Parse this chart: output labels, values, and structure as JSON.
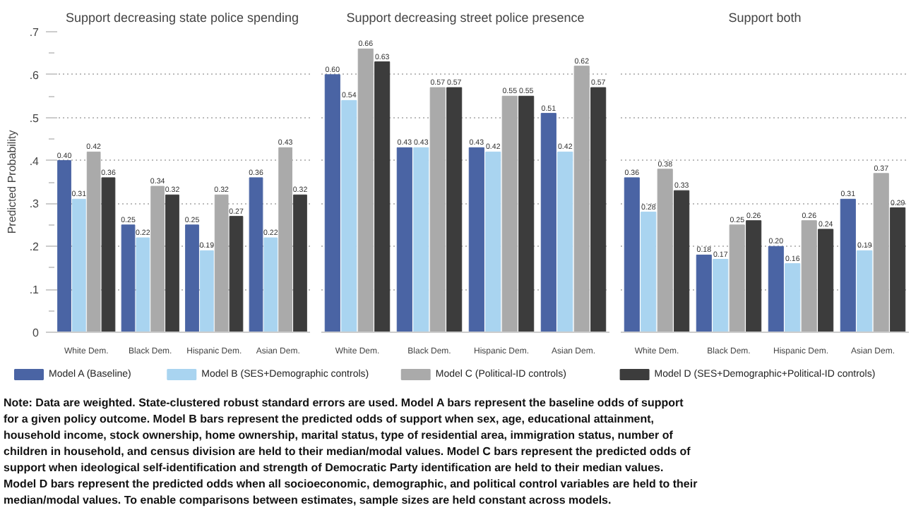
{
  "chart_data": [
    {
      "type": "bar",
      "title": "Support decreasing state police spending",
      "ylabel": "Predicted Probability",
      "categories": [
        "White Dem.",
        "Black Dem.",
        "Hispanic Dem.",
        "Asian Dem."
      ],
      "series": [
        {
          "name": "Model A (Baseline)",
          "color": "#4a64a4",
          "values": [
            0.4,
            0.25,
            0.25,
            0.36
          ],
          "value_labels": [
            "0.40",
            "0.25",
            "0.25",
            "0.36"
          ]
        },
        {
          "name": "Model B (SES+Demographic controls)",
          "color": "#a9d4f0",
          "values": [
            0.31,
            0.22,
            0.19,
            0.22
          ],
          "value_labels": [
            "0.31",
            "0.22",
            "0.19",
            "0.22"
          ]
        },
        {
          "name": "Model C (Political-ID controls)",
          "color": "#aaaaaa",
          "values": [
            0.42,
            0.34,
            0.32,
            0.43
          ],
          "value_labels": [
            "0.42",
            "0.34",
            "0.32",
            "0.43"
          ]
        },
        {
          "name": "Model D (SES+Demographic+Political-ID controls)",
          "color": "#3c3c3c",
          "values": [
            0.36,
            0.32,
            0.27,
            0.32
          ],
          "value_labels": [
            "0.36",
            "0.32",
            "0.27",
            "0.32"
          ]
        }
      ],
      "ylim": [
        0,
        0.7
      ],
      "yticks": [
        0,
        {
          "value": 0.05,
          "label": null
        },
        {
          "value": 0.1,
          "label": ".1"
        },
        {
          "value": 0.15,
          "label": null
        },
        {
          "value": 0.2,
          "label": ".2"
        },
        {
          "value": 0.25,
          "label": null
        },
        {
          "value": 0.3,
          "label": ".3"
        },
        {
          "value": 0.35,
          "label": null
        },
        {
          "value": 0.4,
          "label": ".4"
        },
        {
          "value": 0.45,
          "label": null
        },
        {
          "value": 0.5,
          "label": ".5"
        },
        {
          "value": 0.55,
          "label": null
        },
        {
          "value": 0.6,
          "label": ".6"
        },
        {
          "value": 0.65,
          "label": null
        },
        {
          "value": 0.7,
          "label": ".7"
        }
      ],
      "grid": "y",
      "legend": "bottom",
      "annotations": [
        "Note: Data are weighted. State-clustered robust standard errors are used. Model A bars represent the baseline odds of support for a given policy outcome. Model B bars represent the predicted odds of support when sex, age, educational attainment, household income, stock ownership, home ownership, marital status, type of residential area, immigration status, number of children in household, and census division are held to their median/modal values. Model C bars represent the predicted odds of support when ideological self-identification and strength of Democratic Party identification are held to their median values. Model D bars represent the predicted odds when all socioeconomic, demographic, and political control variables are held to their median/modal values. To enable comparisons between estimates, sample sizes are held constant across models."
      ]
    },
    {
      "type": "bar",
      "title": "Support decreasing street police presence",
      "categories": [
        "White Dem.",
        "Black Dem.",
        "Hispanic Dem.",
        "Asian Dem."
      ],
      "series": [
        {
          "color": "#4a64a4",
          "values": [
            0.6,
            0.43,
            0.43,
            0.51
          ],
          "value_labels": [
            "0.60",
            "0.43",
            "0.43",
            "0.51"
          ]
        },
        {
          "color": "#a9d4f0",
          "values": [
            0.54,
            0.43,
            0.42,
            0.42
          ],
          "value_labels": [
            "0.54",
            "0.43",
            "0.42",
            "0.42"
          ]
        },
        {
          "color": "#aaaaaa",
          "values": [
            0.66,
            0.57,
            0.55,
            0.62
          ],
          "value_labels": [
            "0.66",
            "0.57",
            "0.55",
            "0.62"
          ]
        },
        {
          "color": "#3c3c3c",
          "values": [
            0.63,
            0.57,
            0.55,
            0.57
          ],
          "value_labels": [
            "0.63",
            "0.57",
            "0.55",
            "0.57"
          ]
        }
      ],
      "ylim": [
        0,
        0.7
      ],
      "yticks": [
        0,
        0.1,
        0.2,
        0.3,
        0.4,
        0.5,
        0.6,
        0.7
      ],
      "grid": "y",
      "tick_labels": "x"
    },
    {
      "type": "bar",
      "title": "Support both",
      "categories": [
        "White Dem.",
        "Black Dem.",
        "Hispanic Dem.",
        "Asian Dem."
      ],
      "series": [
        {
          "color": "#4a64a4",
          "values": [
            0.36,
            0.18,
            0.2,
            0.31
          ],
          "value_labels": [
            "0.36",
            "0.18",
            "0.20",
            "0.31"
          ]
        },
        {
          "color": "#a9d4f0",
          "values": [
            0.28,
            0.17,
            0.16,
            0.19
          ],
          "value_labels": [
            "0.28",
            "0.17",
            "0.16",
            "0.19"
          ]
        },
        {
          "color": "#aaaaaa",
          "values": [
            0.38,
            0.25,
            0.26,
            0.37
          ],
          "value_labels": [
            "0.38",
            "0.25",
            "0.26",
            "0.37"
          ]
        },
        {
          "color": "#3c3c3c",
          "values": [
            0.33,
            0.26,
            0.24,
            0.29
          ],
          "value_labels": [
            "0.33",
            "0.26",
            "0.24",
            "0.29"
          ]
        }
      ],
      "ylim": [
        0,
        0.7
      ],
      "yticks": [
        0,
        0.1,
        0.2,
        0.3,
        0.4,
        0.5,
        0.6,
        0.7
      ],
      "grid": "y",
      "tick_labels": "x"
    }
  ]
}
